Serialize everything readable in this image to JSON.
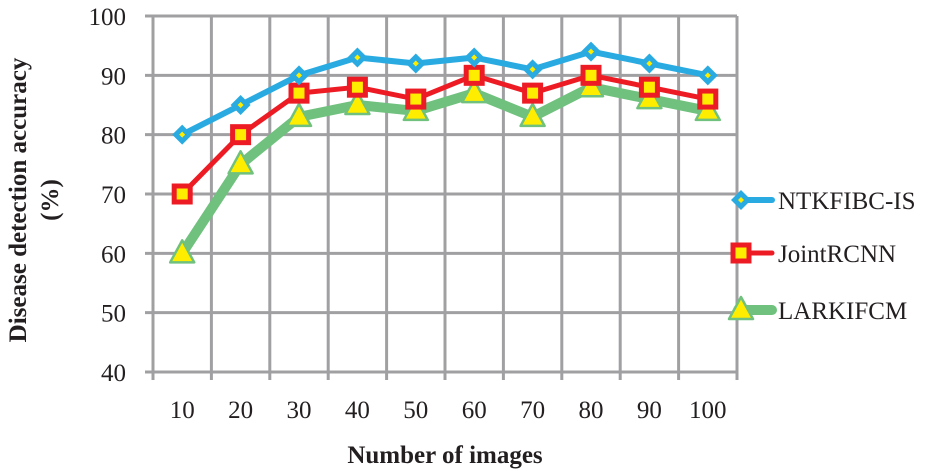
{
  "chart_data": {
    "type": "line",
    "title": "",
    "xlabel": "Number of images",
    "ylabel": "Disease detection accuracy (%)",
    "ylabel_lines": [
      "Disease detection accuracy",
      "(%)"
    ],
    "categories": [
      "10",
      "20",
      "30",
      "40",
      "50",
      "60",
      "70",
      "80",
      "90",
      "100"
    ],
    "yticks": [
      "40",
      "50",
      "60",
      "70",
      "80",
      "90",
      "100"
    ],
    "ylim": [
      40,
      100
    ],
    "grid": true,
    "legend_position": "right",
    "series": [
      {
        "name": "NTKFIBC-IS",
        "color": "#29abe2",
        "marker": "diamond",
        "marker_fill": "#ffed00",
        "values": [
          80,
          85,
          90,
          93,
          92,
          93,
          91,
          94,
          92,
          90
        ]
      },
      {
        "name": "JointRCNN",
        "color": "#ed1c24",
        "marker": "square",
        "marker_fill": "#ffed00",
        "values": [
          70,
          80,
          87,
          88,
          86,
          90,
          87,
          90,
          88,
          86
        ]
      },
      {
        "name": "LARKIFCM",
        "color": "#6fc17d",
        "marker": "triangle",
        "marker_fill": "#ffed00",
        "values": [
          60,
          75,
          83,
          85,
          84,
          87,
          83,
          88,
          86,
          84
        ]
      }
    ]
  }
}
